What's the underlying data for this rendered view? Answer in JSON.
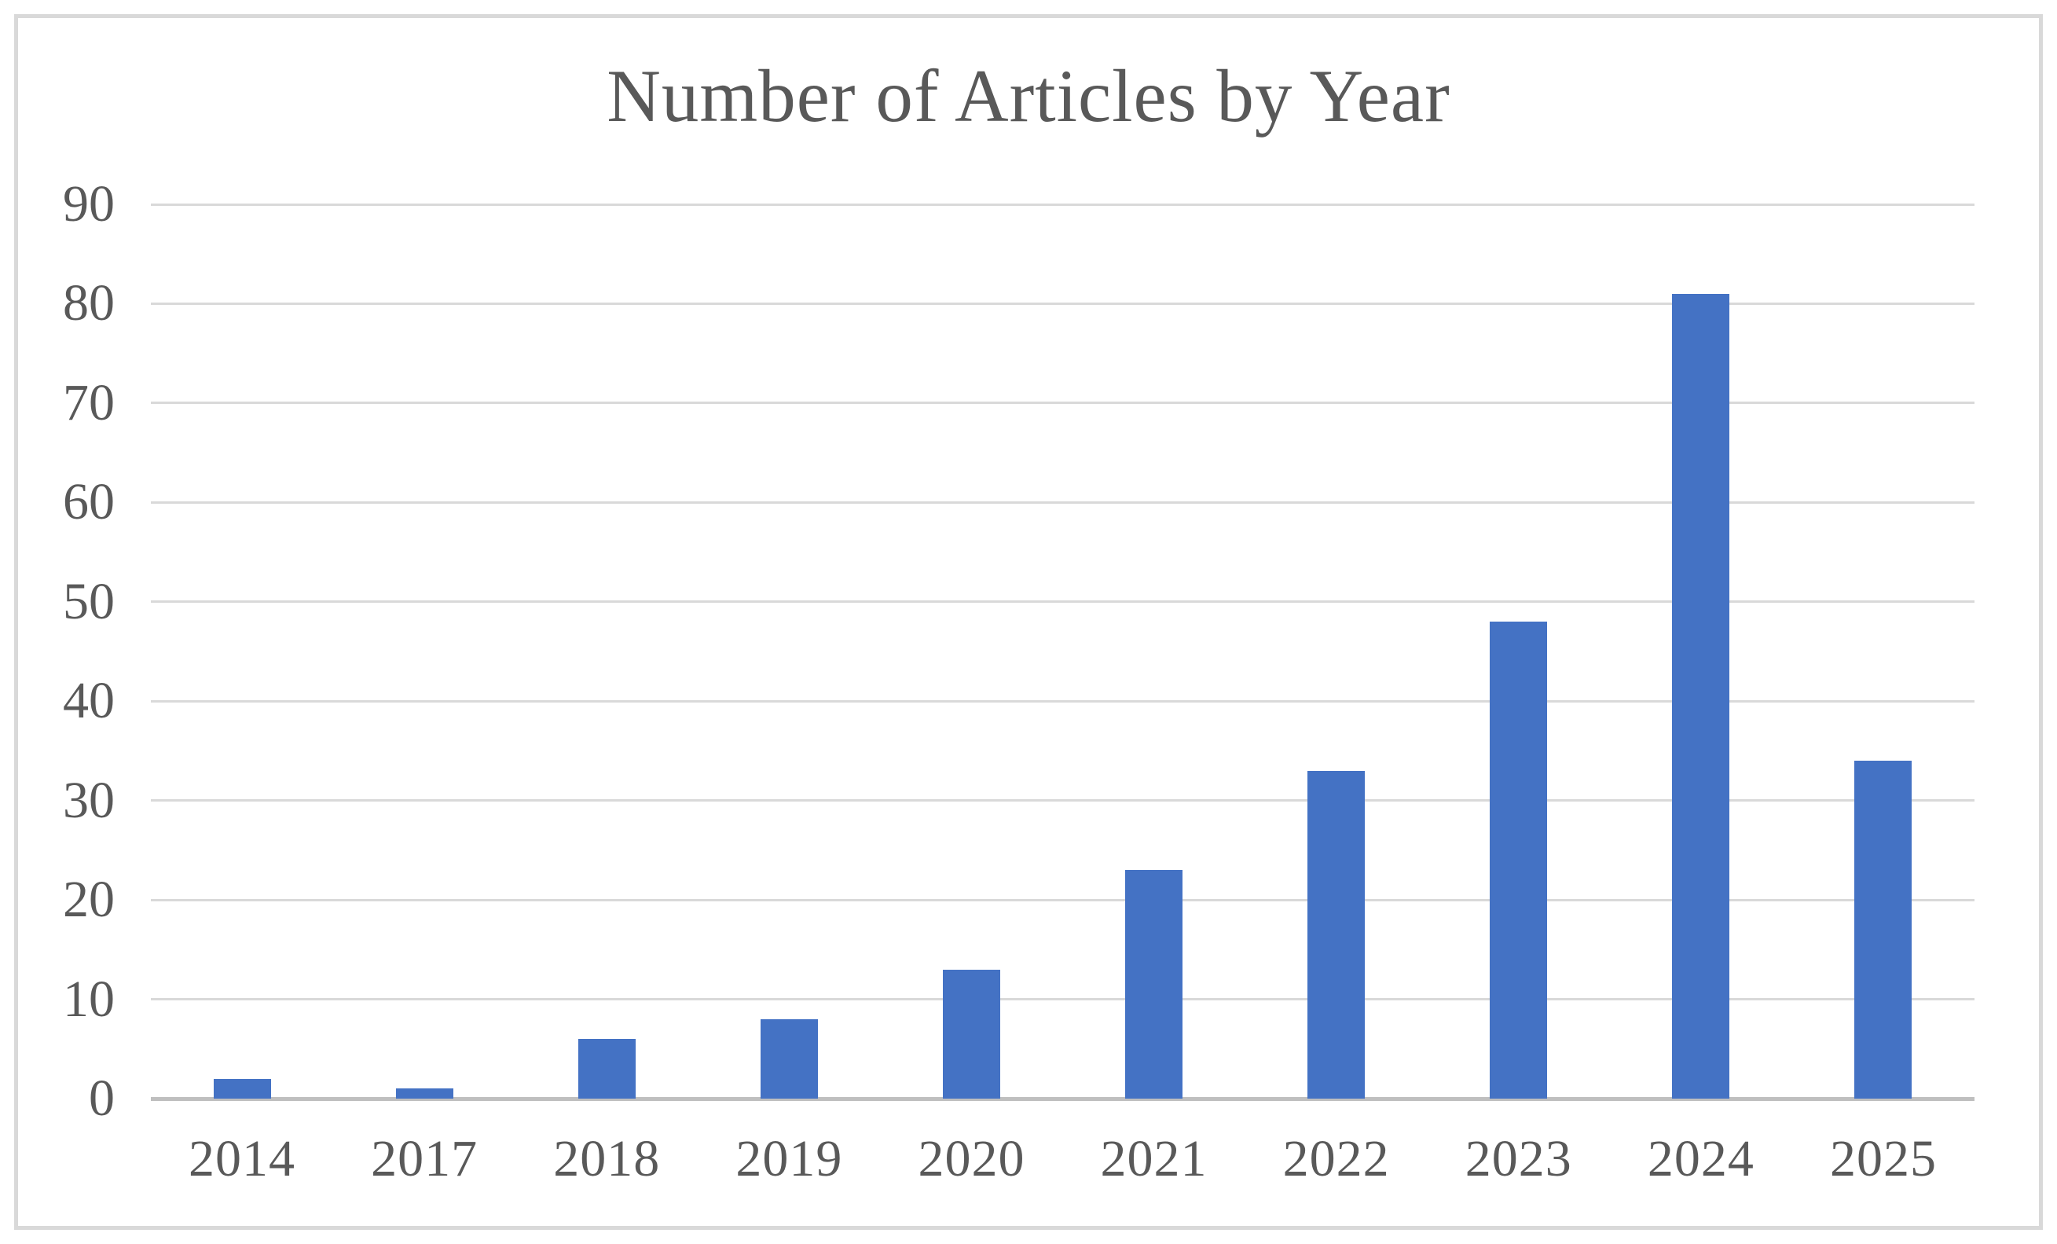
{
  "chart_data": {
    "type": "bar",
    "title": "Number of Articles by Year",
    "categories": [
      "2014",
      "2017",
      "2018",
      "2019",
      "2020",
      "2021",
      "2022",
      "2023",
      "2024",
      "2025"
    ],
    "values": [
      2,
      1,
      6,
      8,
      13,
      23,
      33,
      48,
      81,
      34
    ],
    "xlabel": "",
    "ylabel": "",
    "ylim": [
      0,
      90
    ],
    "yticks": [
      0,
      10,
      20,
      30,
      40,
      50,
      60,
      70,
      80,
      90
    ],
    "grid": "horizontal",
    "legend_position": "none",
    "colors": {
      "bar": "#4472C4",
      "gridline": "#D9D9D9",
      "axis_line": "#BFBFBF",
      "tick_label": "#595959",
      "title": "#595959",
      "chart_border": "#D9D9D9",
      "background": "#FFFFFF"
    }
  }
}
